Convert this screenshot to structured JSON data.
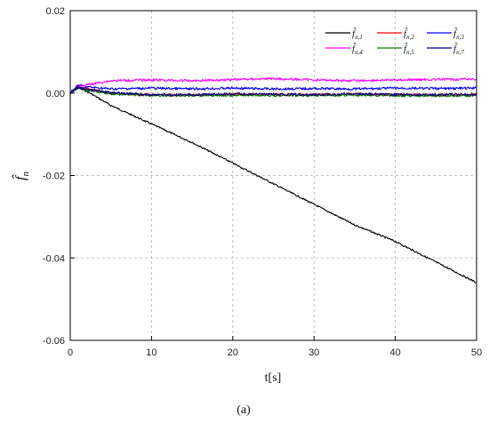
{
  "chart_data": {
    "type": "line",
    "xlabel": "t[s]",
    "ylabel": "f̂",
    "ylabel_sub": "n",
    "xlim": [
      0,
      50
    ],
    "ylim": [
      -0.06,
      0.02
    ],
    "x_ticks": [
      "0",
      "10",
      "20",
      "30",
      "40",
      "50"
    ],
    "y_ticks": [
      "0.02",
      "0.00",
      "-0.02",
      "-0.04",
      "-0.06"
    ],
    "grid": true,
    "legend_position": "top-right",
    "caption": "(a)",
    "series": [
      {
        "name": "f̂",
        "sub": "n,1",
        "color": "#000000",
        "x": [
          0,
          1,
          2,
          5,
          10,
          15,
          20,
          25,
          30,
          35,
          40,
          45,
          50
        ],
        "y": [
          0.0,
          0.0012,
          0.0005,
          -0.003,
          -0.0075,
          -0.012,
          -0.017,
          -0.022,
          -0.027,
          -0.032,
          -0.036,
          -0.041,
          -0.046
        ]
      },
      {
        "name": "f̂",
        "sub": "n,2",
        "color": "#ff0000",
        "x": [
          0,
          1,
          2,
          5,
          10,
          15,
          20,
          25,
          30,
          35,
          40,
          45,
          50
        ],
        "y": [
          0.0,
          0.0015,
          0.001,
          0.0,
          -0.0005,
          -0.0005,
          -0.0003,
          -0.0004,
          -0.0004,
          -0.0003,
          -0.0004,
          -0.0005,
          -0.0004
        ]
      },
      {
        "name": "f̂",
        "sub": "n,3",
        "color": "#0000ff",
        "x": [
          0,
          1,
          2,
          5,
          10,
          15,
          20,
          25,
          30,
          35,
          40,
          45,
          50
        ],
        "y": [
          0.0,
          0.002,
          0.0015,
          0.001,
          0.0012,
          0.001,
          0.0012,
          0.001,
          0.0011,
          0.001,
          0.0012,
          0.0011,
          0.0012
        ]
      },
      {
        "name": "f̂",
        "sub": "n,4",
        "color": "#ff00ff",
        "x": [
          0,
          1,
          2,
          5,
          10,
          15,
          20,
          25,
          30,
          35,
          40,
          45,
          50
        ],
        "y": [
          0.0,
          0.0015,
          0.002,
          0.003,
          0.0032,
          0.003,
          0.0033,
          0.0035,
          0.0032,
          0.003,
          0.0032,
          0.0033,
          0.0034
        ]
      },
      {
        "name": "f̂",
        "sub": "n,5",
        "color": "#008000",
        "x": [
          0,
          1,
          2,
          5,
          10,
          15,
          20,
          25,
          30,
          35,
          40,
          45,
          50
        ],
        "y": [
          0.0,
          0.0012,
          0.0008,
          -0.0002,
          -0.0006,
          -0.0006,
          -0.0005,
          -0.0006,
          -0.0006,
          -0.0005,
          -0.0006,
          -0.0007,
          -0.0006
        ]
      },
      {
        "name": "f̂",
        "sub": "n,7",
        "color": "#000080",
        "x": [
          0,
          1,
          2,
          5,
          10,
          15,
          20,
          25,
          30,
          35,
          40,
          45,
          50
        ],
        "y": [
          0.0,
          0.0014,
          0.0009,
          0.0001,
          -0.0004,
          -0.0004,
          -0.0002,
          -0.0003,
          -0.0004,
          -0.0002,
          -0.0003,
          -0.0004,
          -0.0003
        ]
      }
    ]
  }
}
